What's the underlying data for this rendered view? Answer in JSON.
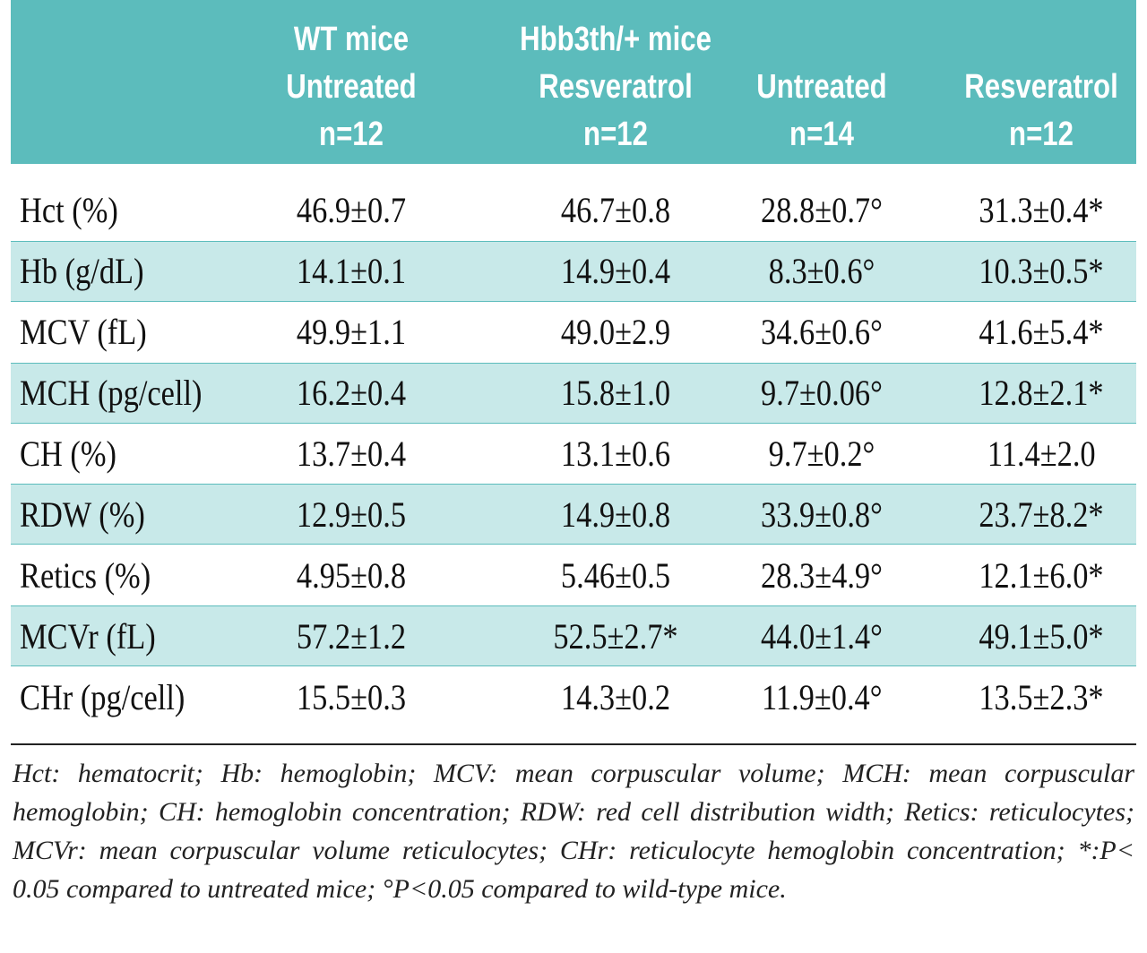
{
  "header": {
    "col1": {
      "line1": "WT mice",
      "line2": "Untreated",
      "line3": "n=12"
    },
    "col2": {
      "line1": "Hbb3th/+ mice",
      "line2": "Resveratrol",
      "line3": "n=12"
    },
    "col3": {
      "line1": "",
      "line2": "Untreated",
      "line3": "n=14"
    },
    "col4": {
      "line1": "",
      "line2": "Resveratrol",
      "line3": "n=12"
    }
  },
  "rows": [
    {
      "label": "Hct (%)",
      "wt_untreated": "46.9±0.7",
      "wt_resveratrol": "46.7±0.8",
      "hbb_untreated": "28.8±0.7°",
      "hbb_resveratrol": "31.3±0.4*"
    },
    {
      "label": "Hb (g/dL)",
      "wt_untreated": "14.1±0.1",
      "wt_resveratrol": "14.9±0.4",
      "hbb_untreated": "8.3±0.6°",
      "hbb_resveratrol": "10.3±0.5*"
    },
    {
      "label": "MCV (fL)",
      "wt_untreated": "49.9±1.1",
      "wt_resveratrol": "49.0±2.9",
      "hbb_untreated": "34.6±0.6°",
      "hbb_resveratrol": "41.6±5.4*"
    },
    {
      "label": "MCH (pg/cell)",
      "wt_untreated": "16.2±0.4",
      "wt_resveratrol": "15.8±1.0",
      "hbb_untreated": "9.7±0.06°",
      "hbb_resveratrol": "12.8±2.1*"
    },
    {
      "label": "CH (%)",
      "wt_untreated": "13.7±0.4",
      "wt_resveratrol": "13.1±0.6",
      "hbb_untreated": "9.7±0.2°",
      "hbb_resveratrol": "11.4±2.0"
    },
    {
      "label": "RDW (%)",
      "wt_untreated": "12.9±0.5",
      "wt_resveratrol": "14.9±0.8",
      "hbb_untreated": "33.9±0.8°",
      "hbb_resveratrol": "23.7±8.2*"
    },
    {
      "label": "Retics (%)",
      "wt_untreated": "4.95±0.8",
      "wt_resveratrol": "5.46±0.5",
      "hbb_untreated": "28.3±4.9°",
      "hbb_resveratrol": "12.1±6.0*"
    },
    {
      "label": "MCVr (fL)",
      "wt_untreated": "57.2±1.2",
      "wt_resveratrol": "52.5±2.7*",
      "hbb_untreated": "44.0±1.4°",
      "hbb_resveratrol": "49.1±5.0*"
    },
    {
      "label": "CHr (pg/cell)",
      "wt_untreated": "15.5±0.3",
      "wt_resveratrol": "14.3±0.2",
      "hbb_untreated": "11.9±0.4°",
      "hbb_resveratrol": "13.5±2.3*"
    }
  ],
  "footnote": "Hct: hematocrit; Hb: hemoglobin; MCV: mean corpuscular volume; MCH: mean corpuscular hemoglobin; CH: hemoglobin concentration; RDW: red cell distribution width; Retics: reticulocytes; MCVr: mean corpuscular volume reticulocytes; CHr: reticulocyte hemoglobin concentration; *:P< 0.05 compared to untreated mice; °P<0.05 compared to wild-type mice.",
  "colors": {
    "header_bg": "#5cbcbc",
    "row_shade": "#c8e9e9"
  }
}
